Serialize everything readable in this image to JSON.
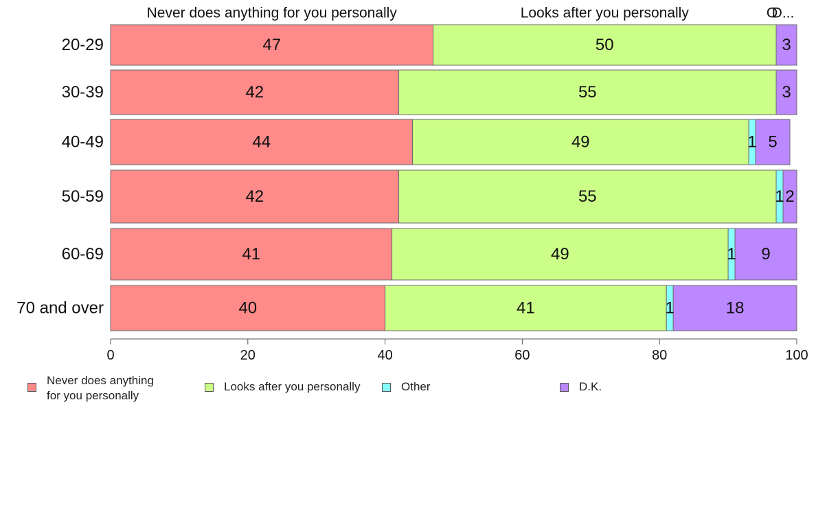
{
  "chart_data": {
    "type": "bar",
    "orientation": "horizontal",
    "stacked": true,
    "categories": [
      "20-29",
      "30-39",
      "40-49",
      "50-59",
      "60-69",
      "70 and over"
    ],
    "series": [
      {
        "name": "Never does anything for you personally",
        "values": [
          47,
          42,
          44,
          42,
          41,
          40
        ],
        "labels": [
          "47",
          "42",
          "44",
          "42",
          "41",
          "40"
        ],
        "color": "#ff8a8a"
      },
      {
        "name": "Looks after you personally",
        "values": [
          50,
          55,
          49,
          55,
          49,
          41
        ],
        "labels": [
          "50",
          "55",
          "49",
          "55",
          "49",
          "41"
        ],
        "color": "#ccff88"
      },
      {
        "name": "Other",
        "values": [
          0,
          0,
          1,
          1,
          1,
          1
        ],
        "labels": [
          "",
          "",
          "1",
          "1",
          "1",
          "1"
        ],
        "color": "#88ffff"
      },
      {
        "name": "D.K.",
        "values": [
          3,
          3,
          5,
          2,
          9,
          18
        ],
        "labels": [
          "3",
          "3",
          "5",
          "2",
          "9",
          "18"
        ],
        "color": "#bb88ff"
      }
    ],
    "top_labels": [
      "Never does anything for you personally",
      "Looks after you personally",
      "O",
      "D..."
    ],
    "legend_labels": [
      "Never does anything\nfor you personally",
      "Looks after you personally",
      "Other",
      "D.K."
    ],
    "x_ticks": [
      "0",
      "20",
      "40",
      "60",
      "80",
      "100"
    ],
    "xlim": [
      0,
      100
    ],
    "grid": false,
    "legend_position": "bottom"
  }
}
